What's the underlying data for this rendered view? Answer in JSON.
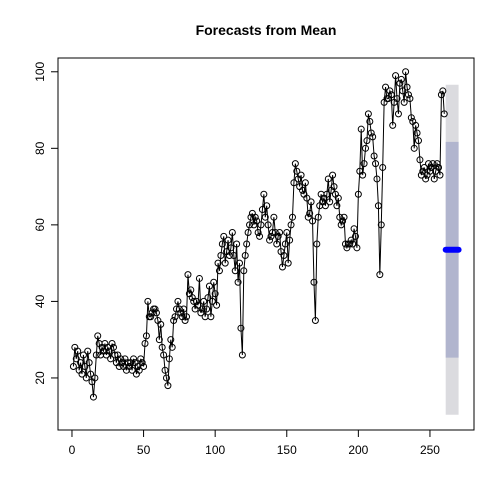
{
  "chart_data": {
    "type": "line",
    "title": "Forecasts from Mean",
    "x": [
      1,
      2,
      3,
      4,
      5,
      6,
      7,
      8,
      9,
      10,
      11,
      12,
      13,
      14,
      15,
      16,
      17,
      18,
      19,
      20,
      21,
      22,
      23,
      24,
      25,
      26,
      27,
      28,
      29,
      30,
      31,
      32,
      33,
      34,
      35,
      36,
      37,
      38,
      39,
      40,
      41,
      42,
      43,
      44,
      45,
      46,
      47,
      48,
      49,
      50,
      51,
      52,
      53,
      54,
      55,
      56,
      57,
      58,
      59,
      60,
      61,
      62,
      63,
      64,
      65,
      66,
      67,
      68,
      69,
      70,
      71,
      72,
      73,
      74,
      75,
      76,
      77,
      78,
      79,
      80,
      81,
      82,
      83,
      84,
      85,
      86,
      87,
      88,
      89,
      90,
      91,
      92,
      93,
      94,
      95,
      96,
      97,
      98,
      99,
      100,
      101,
      102,
      103,
      104,
      105,
      106,
      107,
      108,
      109,
      110,
      111,
      112,
      113,
      114,
      115,
      116,
      117,
      118,
      119,
      120,
      121,
      122,
      123,
      124,
      125,
      126,
      127,
      128,
      129,
      130,
      131,
      132,
      133,
      134,
      135,
      136,
      137,
      138,
      139,
      140,
      141,
      142,
      143,
      144,
      145,
      146,
      147,
      148,
      149,
      150,
      151,
      152,
      153,
      154,
      155,
      156,
      157,
      158,
      159,
      160,
      161,
      162,
      163,
      164,
      165,
      166,
      167,
      168,
      169,
      170,
      171,
      172,
      173,
      174,
      175,
      176,
      177,
      178,
      179,
      180,
      181,
      182,
      183,
      184,
      185,
      186,
      187,
      188,
      189,
      190,
      191,
      192,
      193,
      194,
      195,
      196,
      197,
      198,
      199,
      200,
      201,
      202,
      203,
      204,
      205,
      206,
      207,
      208,
      209,
      210,
      211,
      212,
      213,
      214,
      215,
      216,
      217,
      218,
      219,
      220,
      221,
      222,
      223,
      224,
      225,
      226,
      227,
      228,
      229,
      230,
      231,
      232,
      233,
      234,
      235,
      236,
      237,
      238,
      239,
      240,
      241,
      242,
      243,
      244,
      245,
      246,
      247,
      248,
      249,
      250,
      251,
      252,
      253,
      254,
      255,
      256,
      257,
      258,
      259,
      260
    ],
    "series": [
      {
        "color": "#000000",
        "values": [
          23,
          28,
          25,
          27,
          22,
          24,
          21,
          26,
          23,
          20,
          27,
          24,
          21,
          19,
          15,
          20,
          26,
          31,
          29,
          26,
          28,
          27,
          29,
          26,
          28,
          27,
          25,
          29,
          28,
          26,
          24,
          26,
          23,
          25,
          24,
          23,
          25,
          22,
          24,
          23,
          24,
          22,
          25,
          24,
          21,
          23,
          22,
          25,
          24,
          23,
          29,
          31,
          40,
          36,
          36,
          37,
          38,
          38,
          37,
          35,
          30,
          34,
          28,
          26,
          22,
          20,
          18,
          25,
          30,
          28,
          35,
          36,
          38,
          40,
          38,
          37,
          36,
          38,
          35,
          36,
          47,
          42,
          43,
          41,
          40,
          38,
          40,
          39,
          46,
          37,
          38,
          40,
          36,
          38,
          41,
          44,
          36,
          40,
          45,
          42,
          39,
          50,
          48,
          52,
          55,
          57,
          50,
          53,
          56,
          52,
          54,
          58,
          52,
          48,
          55,
          45,
          50,
          33,
          26,
          48,
          52,
          55,
          58,
          60,
          62,
          63,
          60,
          62,
          61,
          58,
          57,
          60,
          64,
          68,
          62,
          65,
          60,
          56,
          57,
          58,
          62,
          58,
          55,
          57,
          58,
          53,
          49,
          52,
          55,
          58,
          50,
          56,
          60,
          62,
          71,
          76,
          74,
          72,
          70,
          73,
          69,
          68,
          71,
          67,
          62,
          63,
          66,
          61,
          45,
          35,
          55,
          62,
          65,
          68,
          66,
          67,
          65,
          68,
          72,
          66,
          69,
          73,
          70,
          68,
          65,
          67,
          62,
          60,
          61,
          62,
          55,
          54,
          55,
          55,
          56,
          55,
          59,
          57,
          54,
          68,
          74,
          85,
          73,
          76,
          80,
          82,
          89,
          87,
          84,
          83,
          78,
          76,
          72,
          65,
          47,
          60,
          75,
          92,
          96,
          93,
          93,
          95,
          94,
          86,
          92,
          99,
          93,
          89,
          97,
          98,
          95,
          92,
          100,
          96,
          94,
          93,
          88,
          87,
          80,
          86,
          84,
          82,
          77,
          73,
          74,
          75,
          72,
          73,
          76,
          74,
          75,
          76,
          72,
          74,
          76,
          75,
          73,
          94,
          95,
          89
        ]
      }
    ],
    "forecast": {
      "x": [
        261,
        262,
        263,
        264,
        265,
        266,
        267,
        268,
        269,
        270
      ],
      "mean": [
        53.5,
        53.5,
        53.5,
        53.5,
        53.5,
        53.5,
        53.5,
        53.5,
        53.5,
        53.5
      ],
      "lower80": [
        25.3,
        25.3,
        25.3,
        25.3,
        25.3,
        25.3,
        25.3,
        25.3,
        25.3,
        25.3
      ],
      "upper80": [
        81.7,
        81.7,
        81.7,
        81.7,
        81.7,
        81.7,
        81.7,
        81.7,
        81.7,
        81.7
      ],
      "lower95": [
        10.4,
        10.4,
        10.4,
        10.4,
        10.4,
        10.4,
        10.4,
        10.4,
        10.4,
        10.4
      ],
      "upper95": [
        96.6,
        96.6,
        96.6,
        96.6,
        96.6,
        96.6,
        96.6,
        96.6,
        96.6,
        96.6
      ],
      "color": "#0000ff",
      "color80": "#b1b5ce",
      "color95": "#dbdbdf"
    },
    "xlim": [
      -9.76,
      280.76
    ],
    "ylim": [
      6.4,
      103.6
    ],
    "xticks": [
      0,
      50,
      100,
      150,
      200,
      250
    ],
    "yticks": [
      20,
      40,
      60,
      80,
      100
    ]
  }
}
